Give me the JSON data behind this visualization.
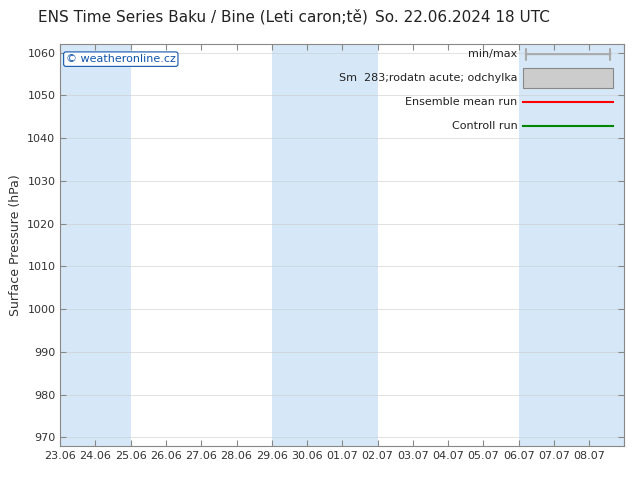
{
  "title_left": "ENS Time Series Baku / Bine (Leti caron;tě)",
  "title_right": "So. 22.06.2024 18 UTC",
  "ylabel": "Surface Pressure (hPa)",
  "ylim": [
    968,
    1062
  ],
  "yticks": [
    970,
    980,
    990,
    1000,
    1010,
    1020,
    1030,
    1040,
    1050,
    1060
  ],
  "x_labels": [
    "23.06",
    "24.06",
    "25.06",
    "26.06",
    "27.06",
    "28.06",
    "29.06",
    "30.06",
    "01.07",
    "02.07",
    "03.07",
    "04.07",
    "05.07",
    "06.07",
    "07.07",
    "08.07"
  ],
  "n_cols": 16,
  "band_color_light": "#d6e8f7",
  "band_color_white": "#ffffff",
  "band_is_blue": [
    1,
    1,
    0,
    0,
    0,
    0,
    1,
    1,
    1,
    0,
    0,
    0,
    0,
    1,
    1,
    1
  ],
  "mean_color": "#ff0000",
  "control_color": "#008800",
  "watermark": "© weatheronline.cz",
  "legend_label_minmax": "min/max",
  "legend_label_std": "Sm  283;rodatn acute; odchylka",
  "legend_label_mean": "Ensemble mean run",
  "legend_label_ctrl": "Controll run",
  "legend_minmax_color": "#aaaaaa",
  "legend_std_color": "#cccccc",
  "fig_bg": "#ffffff",
  "plot_bg": "#ffffff",
  "title_fontsize": 11,
  "axis_fontsize": 9,
  "tick_fontsize": 8,
  "legend_fontsize": 8,
  "watermark_color": "#1155aa",
  "spine_color": "#888888",
  "grid_color": "#cccccc"
}
